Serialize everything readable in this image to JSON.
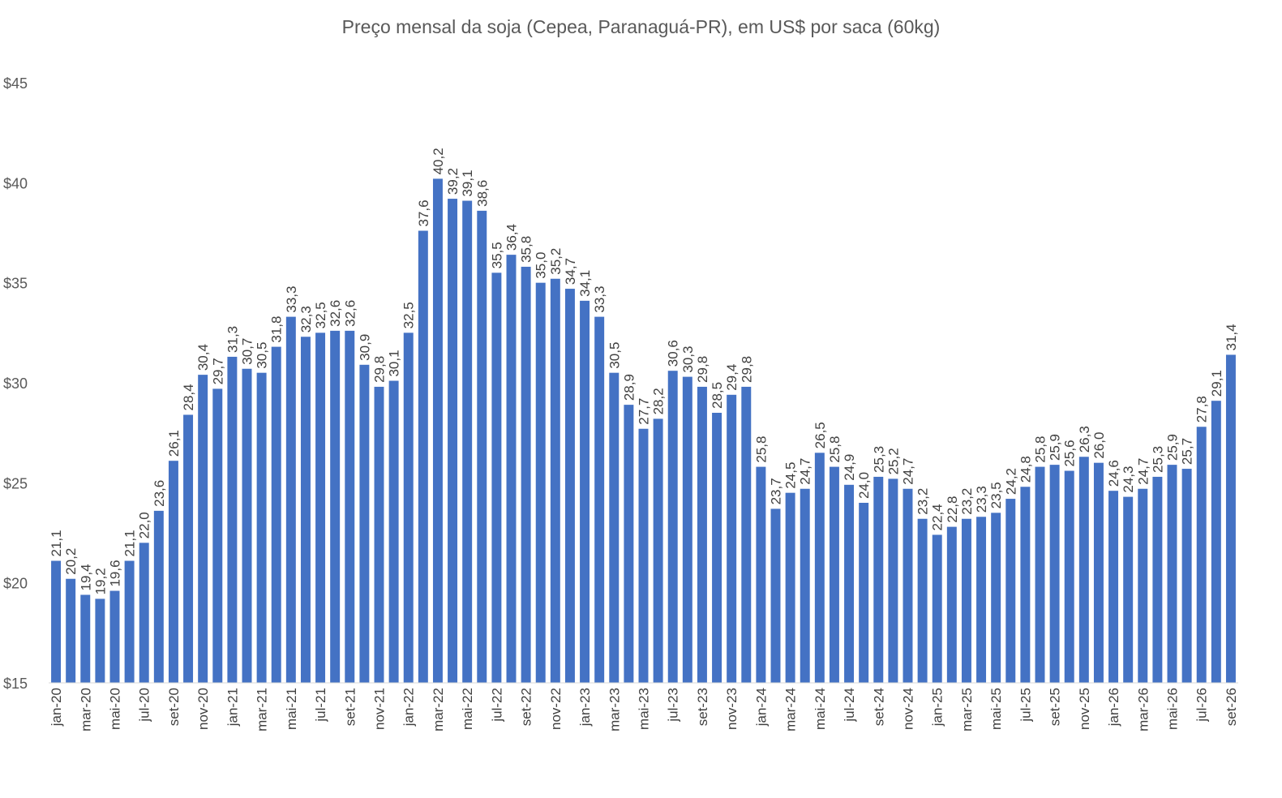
{
  "chart_data": {
    "type": "bar",
    "title": "Preço mensal da soja (Cepea, Paranaguá-PR), em US$ por saca (60kg)",
    "xlabel": "",
    "ylabel": "",
    "ylim": [
      15,
      45
    ],
    "yticks": [
      15,
      20,
      25,
      30,
      35,
      40,
      45
    ],
    "ytick_prefix": "$",
    "grid": false,
    "legend": "none",
    "bar_color": "#4472C4",
    "categories": [
      "jan-20",
      "fev-20",
      "mar-20",
      "abr-20",
      "mai-20",
      "jun-20",
      "jul-20",
      "ago-20",
      "set-20",
      "out-20",
      "nov-20",
      "dez-20",
      "jan-21",
      "fev-21",
      "mar-21",
      "abr-21",
      "mai-21",
      "jun-21",
      "jul-21",
      "ago-21",
      "set-21",
      "out-21",
      "nov-21",
      "dez-21",
      "jan-22",
      "fev-22",
      "mar-22",
      "abr-22",
      "mai-22",
      "jun-22",
      "jul-22",
      "ago-22",
      "set-22",
      "out-22",
      "nov-22",
      "dez-22",
      "jan-23",
      "fev-23",
      "mar-23",
      "abr-23",
      "mai-23",
      "jun-23",
      "jul-23",
      "ago-23",
      "set-23",
      "out-23",
      "nov-23",
      "dez-23",
      "jan-24",
      "fev-24",
      "mar-24",
      "abr-24",
      "mai-24",
      "jun-24",
      "jul-24",
      "ago-24",
      "set-24",
      "out-24",
      "nov-24",
      "dez-24",
      "jan-25",
      "fev-25",
      "mar-25",
      "abr-25",
      "mai-25",
      "jun-25",
      "jul-25",
      "ago-25",
      "set-25",
      "out-25",
      "nov-25",
      "dez-25",
      "jan-26",
      "fev-26",
      "mar-26",
      "abr-26",
      "mai-26",
      "jun-26",
      "jul-26",
      "ago-26",
      "set-26"
    ],
    "values": [
      21.1,
      20.2,
      19.4,
      19.2,
      19.6,
      21.1,
      22.0,
      23.6,
      26.1,
      28.4,
      30.4,
      29.7,
      31.3,
      30.7,
      30.5,
      31.8,
      33.3,
      32.3,
      32.5,
      32.6,
      32.6,
      30.9,
      29.8,
      30.1,
      32.5,
      37.6,
      40.2,
      39.2,
      39.1,
      38.6,
      35.5,
      36.4,
      35.8,
      35.0,
      35.2,
      34.7,
      34.1,
      33.3,
      30.5,
      28.9,
      27.7,
      28.2,
      30.6,
      30.3,
      29.8,
      28.5,
      29.4,
      29.8,
      25.8,
      23.7,
      24.5,
      24.7,
      26.5,
      25.8,
      24.9,
      24.0,
      25.3,
      25.2,
      24.7,
      23.2,
      22.4,
      22.8,
      23.2,
      23.3,
      23.5,
      24.2,
      24.8,
      25.8,
      25.9,
      25.6,
      26.3,
      26.0,
      24.6,
      24.3,
      24.7,
      25.3,
      25.9,
      25.7,
      27.8,
      29.1,
      31.4
    ],
    "labels": [
      "21,1",
      "20,2",
      "19,4",
      "19,2",
      "19,6",
      "21,1",
      "22,0",
      "23,6",
      "26,1",
      "28,4",
      "30,4",
      "29,7",
      "31,3",
      "30,7",
      "30,5",
      "31,8",
      "33,3",
      "32,3",
      "32,5",
      "32,6",
      "32,6",
      "30,9",
      "29,8",
      "30,1",
      "32,5",
      "37,6",
      "40,2",
      "39,2",
      "39,1",
      "38,6",
      "35,5",
      "36,4",
      "35,8",
      "35,0",
      "35,2",
      "34,7",
      "34,1",
      "33,3",
      "30,5",
      "28,9",
      "27,7",
      "28,2",
      "30,6",
      "30,3",
      "29,8",
      "28,5",
      "29,4",
      "29,8",
      "25,8",
      "23,7",
      "24,5",
      "24,7",
      "26,5",
      "25,8",
      "24,9",
      "24,0",
      "25,3",
      "25,2",
      "24,7",
      "23,2",
      "22,4",
      "22,8",
      "23,2",
      "23,3",
      "23,5",
      "24,2",
      "24,8",
      "25,8",
      "25,9",
      "25,6",
      "26,3",
      "26,0",
      "24,6",
      "24,3",
      "24,7",
      "25,3",
      "25,9",
      "25,7",
      "27,8",
      "29,1",
      "31,4"
    ],
    "x_ticks_shown": [
      "jan-20",
      "mar-20",
      "mai-20",
      "jul-20",
      "set-20",
      "nov-20",
      "jan-21",
      "mar-21",
      "mai-21",
      "jul-21",
      "set-21",
      "nov-21",
      "jan-22",
      "mar-22",
      "mai-22",
      "jul-22",
      "set-22",
      "nov-22",
      "jan-23",
      "mar-23",
      "mai-23",
      "jul-23",
      "set-23",
      "nov-23",
      "jan-24",
      "mar-24",
      "mai-24",
      "jul-24",
      "set-24",
      "nov-24",
      "jan-25",
      "mar-25",
      "mai-25",
      "jul-25",
      "set-25",
      "nov-25",
      "jan-26",
      "mar-26",
      "mai-26",
      "jul-26",
      "set-26"
    ]
  }
}
